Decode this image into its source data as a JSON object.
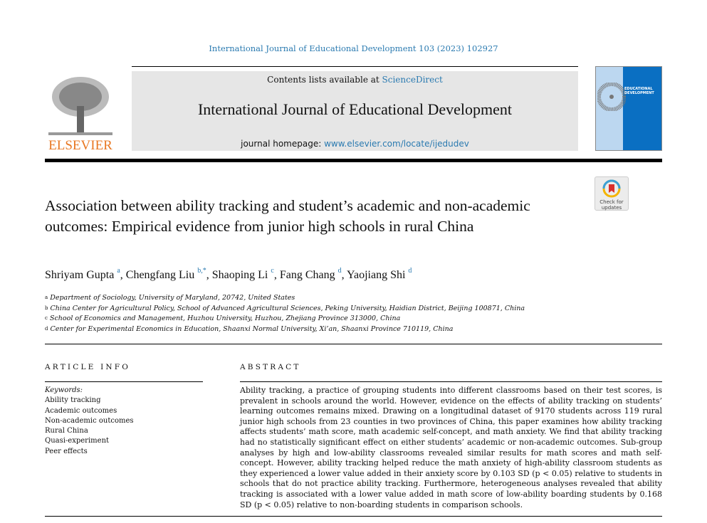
{
  "journal_ref": "International Journal of Educational Development 103 (2023) 102927",
  "header": {
    "contents_prefix": "Contents lists available at ",
    "contents_link": "ScienceDirect",
    "journal_title": "International Journal of Educational Development",
    "homepage_prefix": "journal homepage: ",
    "homepage_link": "www.elsevier.com/locate/ijedudev",
    "publisher": "ELSEVIER",
    "cover_title": "EDUCATIONAL DEVELOPMENT",
    "check_updates": "Check for updates"
  },
  "title": "Association between ability tracking and student’s academic and non-academic outcomes: Empirical evidence from junior high schools in rural China",
  "authors": [
    {
      "name": "Shriyam Gupta",
      "sup": "a"
    },
    {
      "name": "Chengfang Liu",
      "sup": "b,*"
    },
    {
      "name": "Shaoping Li",
      "sup": "c"
    },
    {
      "name": "Fang Chang",
      "sup": "d"
    },
    {
      "name": "Yaojiang Shi",
      "sup": "d"
    }
  ],
  "affiliations": [
    {
      "sup": "a",
      "text": "Department of Sociology, University of Maryland, 20742, United States"
    },
    {
      "sup": "b",
      "text": "China Center for Agricultural Policy, School of Advanced Agricultural Sciences, Peking University, Haidian District, Beijing 100871, China"
    },
    {
      "sup": "c",
      "text": "School of Economics and Management, Huzhou University, Huzhou, Zhejiang Province 313000, China"
    },
    {
      "sup": "d",
      "text": "Center for Experimental Economics in Education, Shaanxi Normal University, Xi’an, Shaanxi Province 710119, China"
    }
  ],
  "article_info": {
    "heading": "ARTICLE INFO",
    "keywords_label": "Keywords:",
    "keywords": [
      "Ability tracking",
      "Academic outcomes",
      "Non-academic outcomes",
      "Rural China",
      "Quasi-experiment",
      "Peer effects"
    ]
  },
  "abstract": {
    "heading": "ABSTRACT",
    "text": "Ability tracking, a practice of grouping students into different classrooms based on their test scores, is prevalent in schools around the world. However, evidence on the effects of ability tracking on students’ learning outcomes remains mixed. Drawing on a longitudinal dataset of 9170 students across 119 rural junior high schools from 23 counties in two provinces of China, this paper examines how ability tracking affects students’ math score, math academic self-concept, and math anxiety. We find that ability tracking had no statistically significant effect on either students’ academic or non-academic outcomes. Sub-group analyses by high and low-ability classrooms revealed similar results for math scores and math self-concept. However, ability tracking helped reduce the math anxiety of high-ability classroom students as they experienced a lower value added in their anxiety score by 0.103 SD (p < 0.05) relative to students in schools that do not practice ability tracking. Furthermore, heterogeneous analyses revealed that ability tracking is associated with a lower value added in math score of low-ability boarding students by 0.168 SD (p < 0.05) relative to non-boarding students in comparison schools."
  }
}
